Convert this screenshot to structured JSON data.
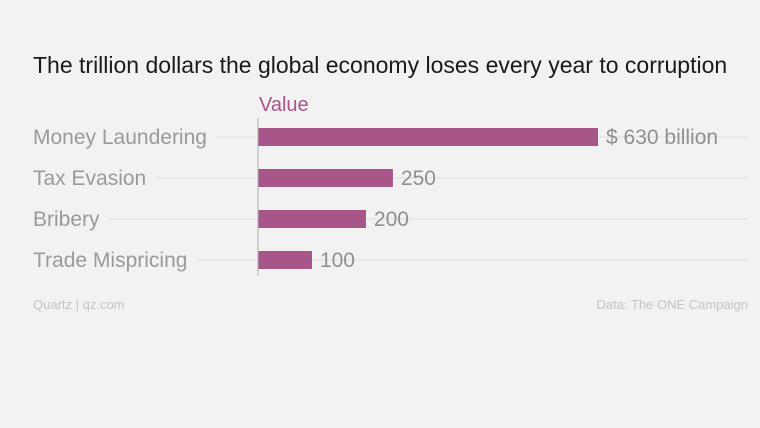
{
  "chart_data": {
    "type": "bar",
    "orientation": "horizontal",
    "title": "The trillion dollars the global economy loses every year to corruption",
    "series_label": "Value",
    "categories": [
      "Money Laundering",
      "Tax Evasion",
      "Bribery",
      "Trade Mispricing"
    ],
    "values": [
      630,
      250,
      200,
      100
    ],
    "value_labels": [
      "$ 630 billion",
      "250",
      "200",
      "100"
    ],
    "units": "billion USD",
    "xlim": [
      0,
      630
    ],
    "grid": true,
    "bar_color": "#a8558a",
    "series_label_color": "#a8558a"
  },
  "footer": {
    "credit": "Quartz | qz.com",
    "source": "Data: The ONE Campaign"
  }
}
